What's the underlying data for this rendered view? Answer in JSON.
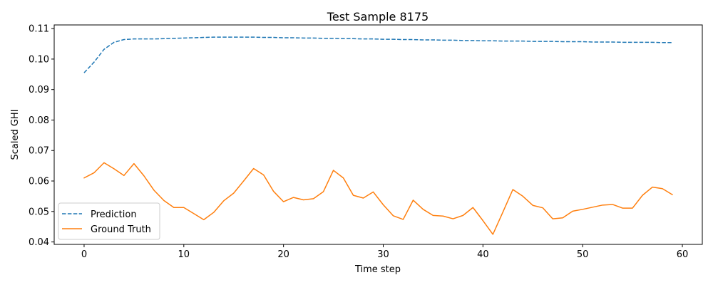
{
  "chart_data": {
    "type": "line",
    "title": "Test Sample 8175",
    "xlabel": "Time step",
    "ylabel": "Scaled GHI",
    "xlim": [
      -3,
      62
    ],
    "ylim": [
      0.0392,
      0.1112
    ],
    "xticks": [
      0,
      10,
      20,
      30,
      40,
      50,
      60
    ],
    "yticks": [
      0.04,
      0.05,
      0.06,
      0.07,
      0.08,
      0.09,
      0.1,
      0.11
    ],
    "ytick_labels": [
      "0.04",
      "0.05",
      "0.06",
      "0.07",
      "0.08",
      "0.09",
      "0.10",
      "0.11"
    ],
    "grid": false,
    "legend_position": "lower-left",
    "x": [
      0,
      1,
      2,
      3,
      4,
      5,
      6,
      7,
      8,
      9,
      10,
      11,
      12,
      13,
      14,
      15,
      16,
      17,
      18,
      19,
      20,
      21,
      22,
      23,
      24,
      25,
      26,
      27,
      28,
      29,
      30,
      31,
      32,
      33,
      34,
      35,
      36,
      37,
      38,
      39,
      40,
      41,
      42,
      43,
      44,
      45,
      46,
      47,
      48,
      49,
      50,
      51,
      52,
      53,
      54,
      55,
      56,
      57,
      58,
      59
    ],
    "series": [
      {
        "name": "Prediction",
        "color": "#1f77b4",
        "style": "dashed",
        "values": [
          0.0955,
          0.099,
          0.1032,
          0.1055,
          0.1064,
          0.1066,
          0.1066,
          0.1066,
          0.1067,
          0.1068,
          0.1069,
          0.107,
          0.1071,
          0.1072,
          0.1072,
          0.1072,
          0.1072,
          0.1072,
          0.1071,
          0.1071,
          0.107,
          0.107,
          0.1069,
          0.1069,
          0.1068,
          0.1068,
          0.1067,
          0.1067,
          0.1066,
          0.1066,
          0.1065,
          0.1065,
          0.1064,
          0.1064,
          0.1063,
          0.1063,
          0.1062,
          0.1062,
          0.1061,
          0.1061,
          0.106,
          0.106,
          0.1059,
          0.1059,
          0.1059,
          0.1058,
          0.1058,
          0.1058,
          0.1057,
          0.1057,
          0.1057,
          0.1056,
          0.1056,
          0.1056,
          0.1055,
          0.1055,
          0.1055,
          0.1055,
          0.1054,
          0.1054
        ]
      },
      {
        "name": "Ground Truth",
        "color": "#ff7f0e",
        "style": "solid",
        "values": [
          0.061,
          0.0627,
          0.066,
          0.064,
          0.0618,
          0.0657,
          0.0617,
          0.057,
          0.0536,
          0.0513,
          0.0513,
          0.0493,
          0.0473,
          0.0497,
          0.0535,
          0.056,
          0.06,
          0.0641,
          0.062,
          0.0566,
          0.0532,
          0.0546,
          0.0538,
          0.0542,
          0.0565,
          0.0635,
          0.061,
          0.0553,
          0.0544,
          0.0564,
          0.0522,
          0.0486,
          0.0474,
          0.0537,
          0.0507,
          0.0487,
          0.0485,
          0.0476,
          0.0487,
          0.0513,
          0.047,
          0.0425,
          0.0498,
          0.0572,
          0.055,
          0.052,
          0.0512,
          0.0476,
          0.0479,
          0.0501,
          0.0507,
          0.0514,
          0.0521,
          0.0523,
          0.0511,
          0.0511,
          0.0553,
          0.058,
          0.0575,
          0.0555
        ]
      }
    ]
  }
}
